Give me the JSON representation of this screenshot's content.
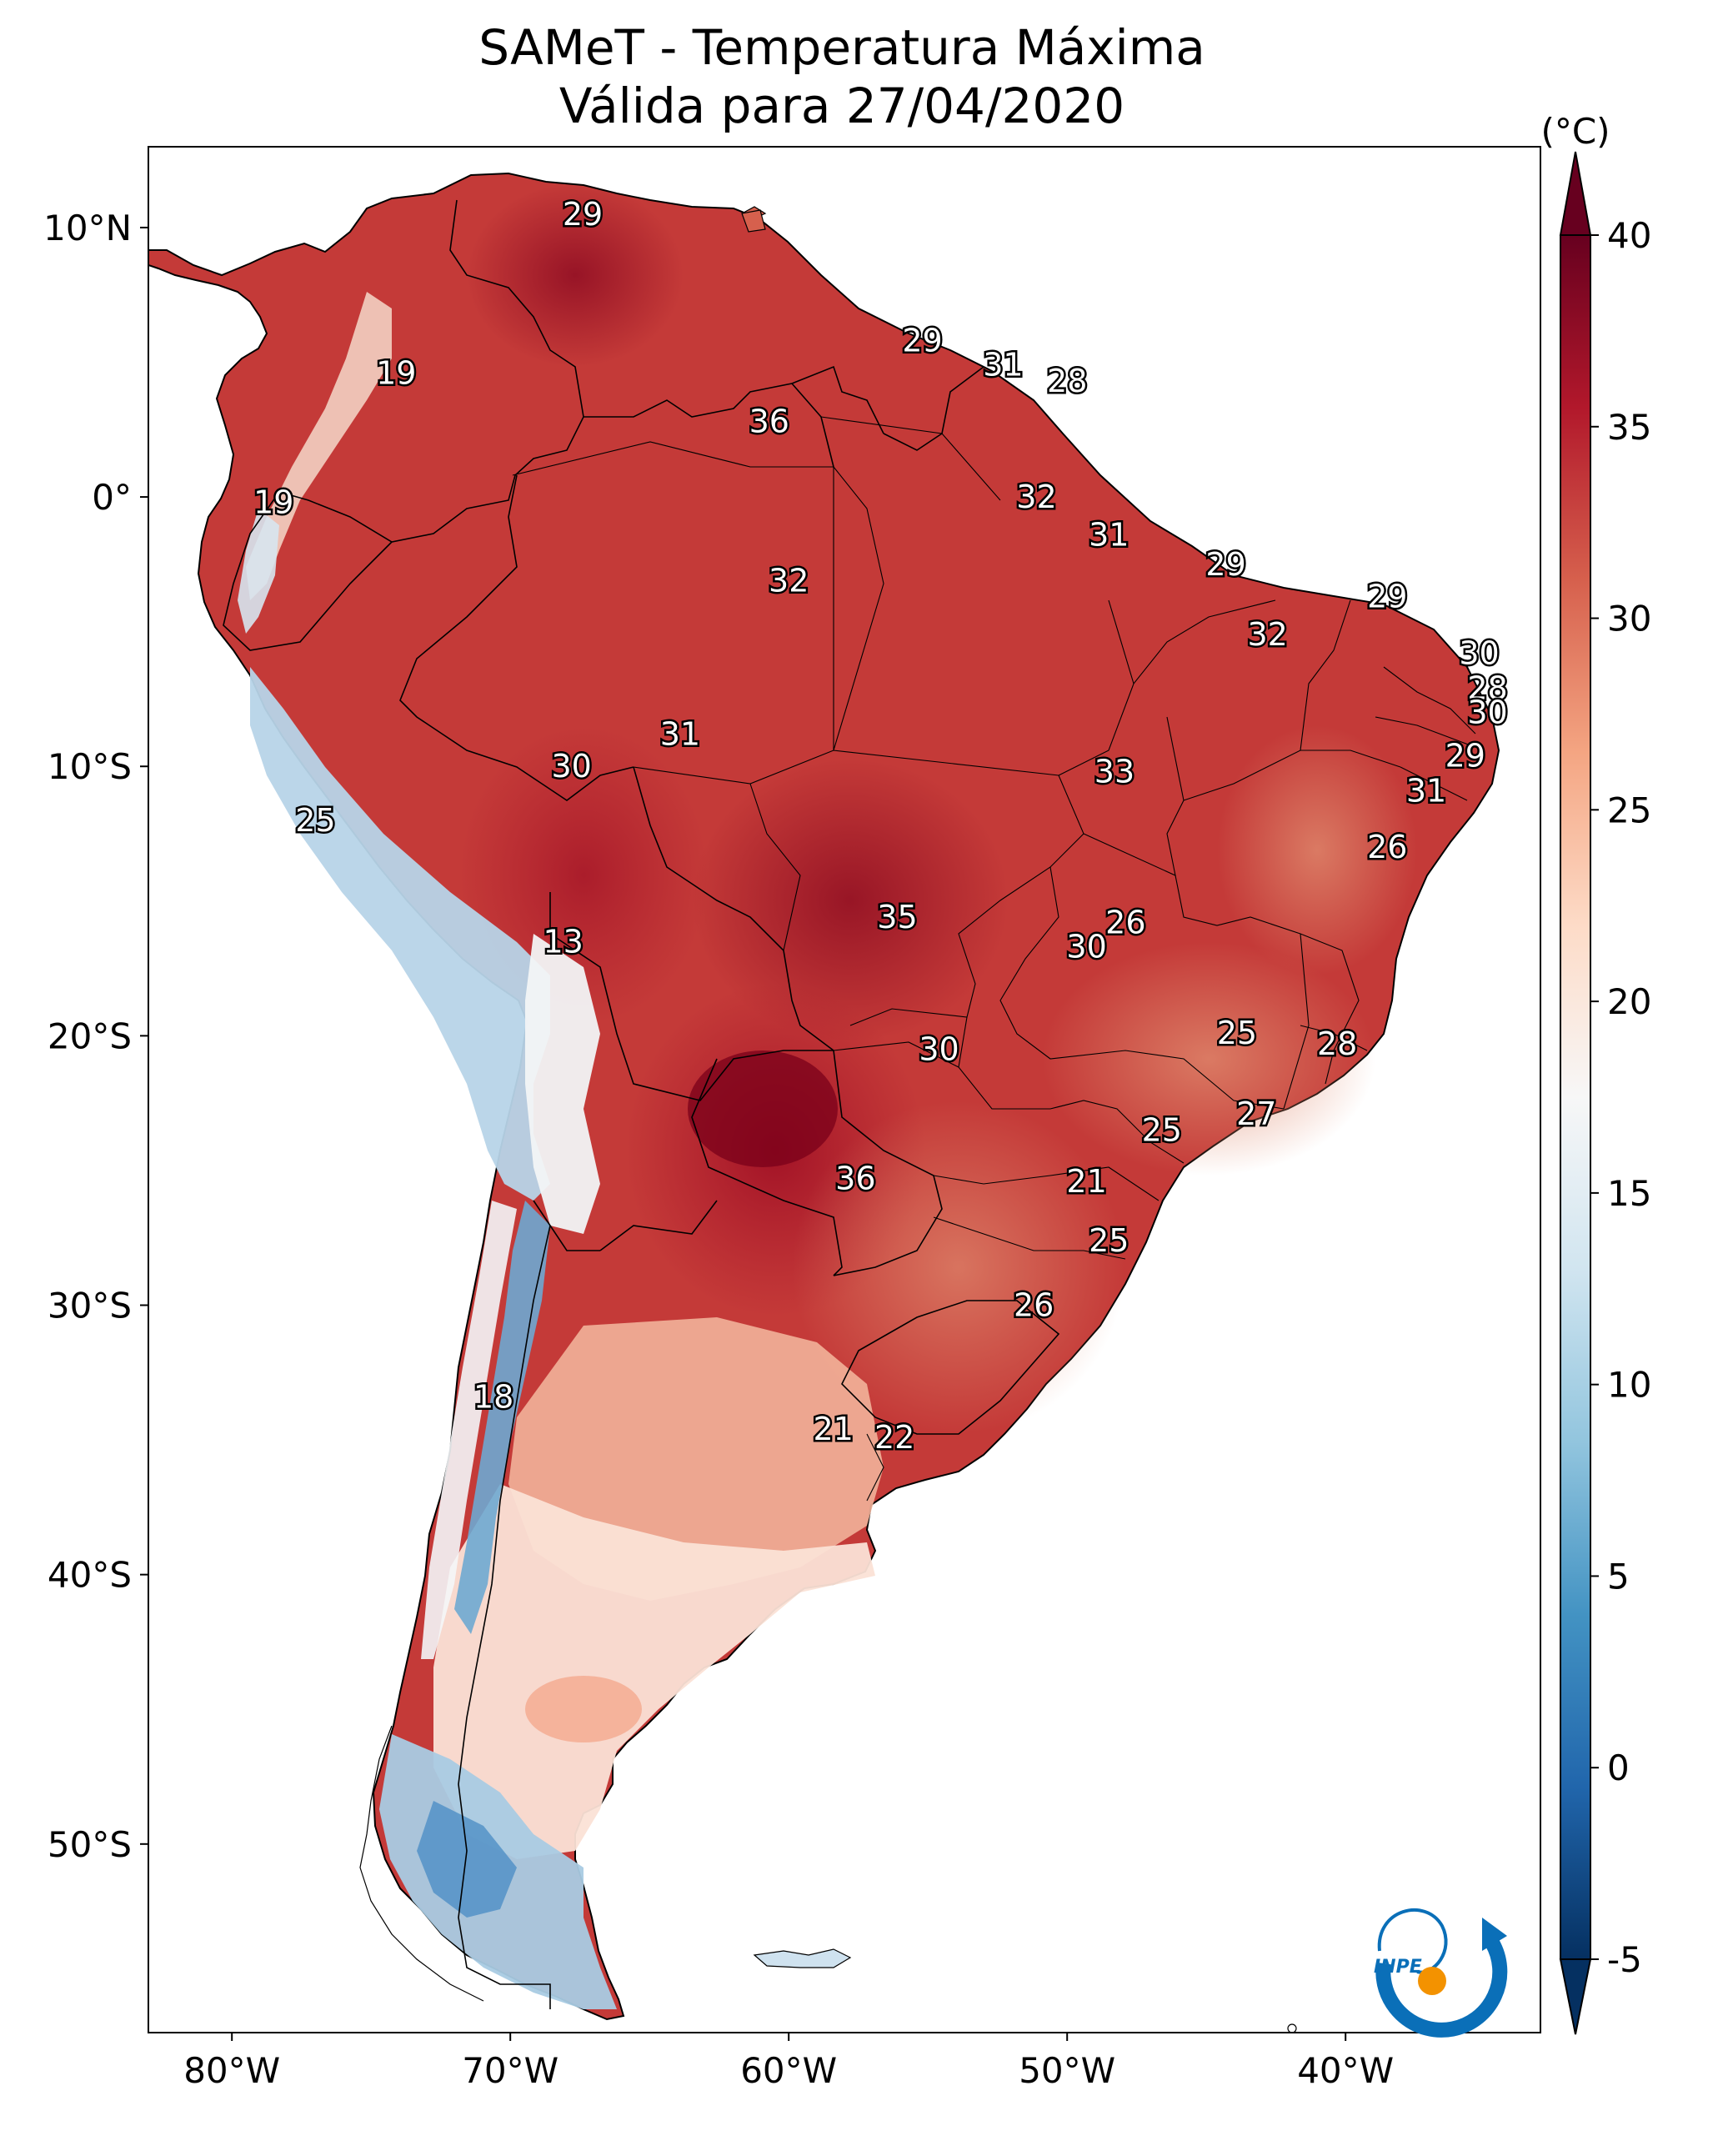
{
  "title": {
    "line1": "SAMeT - Temperatura Máxima",
    "line2": "Válida para 27/04/2020"
  },
  "map": {
    "region": "South America",
    "variable": "Temperatura Máxima",
    "lon_range": [
      -83,
      -33
    ],
    "lat_range": [
      -57,
      13
    ],
    "lat_ticks": [
      {
        "value": 10,
        "label": "10°N"
      },
      {
        "value": 0,
        "label": "0°"
      },
      {
        "value": -10,
        "label": "10°S"
      },
      {
        "value": -20,
        "label": "20°S"
      },
      {
        "value": -30,
        "label": "30°S"
      },
      {
        "value": -40,
        "label": "40°S"
      },
      {
        "value": -50,
        "label": "50°S"
      }
    ],
    "lon_ticks": [
      {
        "value": -80,
        "label": "80°W"
      },
      {
        "value": -70,
        "label": "70°W"
      },
      {
        "value": -60,
        "label": "60°W"
      },
      {
        "value": -50,
        "label": "50°W"
      },
      {
        "value": -40,
        "label": "40°W"
      }
    ],
    "city_values": [
      {
        "lon": -67.4,
        "lat": 10.5,
        "label": "29"
      },
      {
        "lon": -74.1,
        "lat": 4.6,
        "label": "19"
      },
      {
        "lon": -78.5,
        "lat": -0.2,
        "label": "19"
      },
      {
        "lon": -77.0,
        "lat": -12.0,
        "label": "25"
      },
      {
        "lon": -68.1,
        "lat": -16.5,
        "label": "13"
      },
      {
        "lon": -70.6,
        "lat": -33.4,
        "label": "18"
      },
      {
        "lon": -60.7,
        "lat": 2.8,
        "label": "36"
      },
      {
        "lon": -55.2,
        "lat": 5.8,
        "label": "29"
      },
      {
        "lon": -52.3,
        "lat": 4.9,
        "label": "31"
      },
      {
        "lon": -50.0,
        "lat": 4.3,
        "label": "28"
      },
      {
        "lon": -51.1,
        "lat": 0.0,
        "label": "32"
      },
      {
        "lon": -48.5,
        "lat": -1.4,
        "label": "31"
      },
      {
        "lon": -44.3,
        "lat": -2.5,
        "label": "29"
      },
      {
        "lon": -38.5,
        "lat": -3.7,
        "label": "29"
      },
      {
        "lon": -42.8,
        "lat": -5.1,
        "label": "32"
      },
      {
        "lon": -35.2,
        "lat": -5.8,
        "label": "30"
      },
      {
        "lon": -34.9,
        "lat": -7.1,
        "label": "28"
      },
      {
        "lon": -34.9,
        "lat": -8.0,
        "label": "30"
      },
      {
        "lon": -35.7,
        "lat": -9.6,
        "label": "29"
      },
      {
        "lon": -37.1,
        "lat": -10.9,
        "label": "31"
      },
      {
        "lon": -38.5,
        "lat": -13.0,
        "label": "26"
      },
      {
        "lon": -60.0,
        "lat": -3.1,
        "label": "32"
      },
      {
        "lon": -63.9,
        "lat": -8.8,
        "label": "31"
      },
      {
        "lon": -67.8,
        "lat": -10.0,
        "label": "30"
      },
      {
        "lon": -48.3,
        "lat": -10.2,
        "label": "33"
      },
      {
        "lon": -56.1,
        "lat": -15.6,
        "label": "35"
      },
      {
        "lon": -47.9,
        "lat": -15.8,
        "label": "26"
      },
      {
        "lon": -49.3,
        "lat": -16.7,
        "label": "30"
      },
      {
        "lon": -54.6,
        "lat": -20.5,
        "label": "30"
      },
      {
        "lon": -43.9,
        "lat": -19.9,
        "label": "25"
      },
      {
        "lon": -40.3,
        "lat": -20.3,
        "label": "28"
      },
      {
        "lon": -43.2,
        "lat": -22.9,
        "label": "27"
      },
      {
        "lon": -46.6,
        "lat": -23.5,
        "label": "25"
      },
      {
        "lon": -49.3,
        "lat": -25.4,
        "label": "21"
      },
      {
        "lon": -57.6,
        "lat": -25.3,
        "label": "36"
      },
      {
        "lon": -48.5,
        "lat": -27.6,
        "label": "25"
      },
      {
        "lon": -51.2,
        "lat": -30.0,
        "label": "26"
      },
      {
        "lon": -58.4,
        "lat": -34.6,
        "label": "21"
      },
      {
        "lon": -56.2,
        "lat": -34.9,
        "label": "22"
      }
    ]
  },
  "colorbar": {
    "unit": "(°C)",
    "min": -5,
    "max": 40,
    "extend": "both",
    "colormap": "RdBu_r",
    "ticks": [
      {
        "value": 40,
        "label": "40"
      },
      {
        "value": 35,
        "label": "35"
      },
      {
        "value": 30,
        "label": "30"
      },
      {
        "value": 25,
        "label": "25"
      },
      {
        "value": 20,
        "label": "20"
      },
      {
        "value": 15,
        "label": "15"
      },
      {
        "value": 10,
        "label": "10"
      },
      {
        "value": 5,
        "label": "5"
      },
      {
        "value": 0,
        "label": "0"
      },
      {
        "value": -5,
        "label": "-5"
      }
    ],
    "colors": [
      "#053061",
      "#2166ac",
      "#4393c3",
      "#92c5de",
      "#d1e5f0",
      "#f7f7f7",
      "#fddbc7",
      "#f4a582",
      "#d6604d",
      "#b2182b",
      "#67001f"
    ]
  },
  "logo": {
    "text": "INPE",
    "colors": {
      "primary": "#0a6fb8",
      "accent": "#f39200"
    }
  }
}
